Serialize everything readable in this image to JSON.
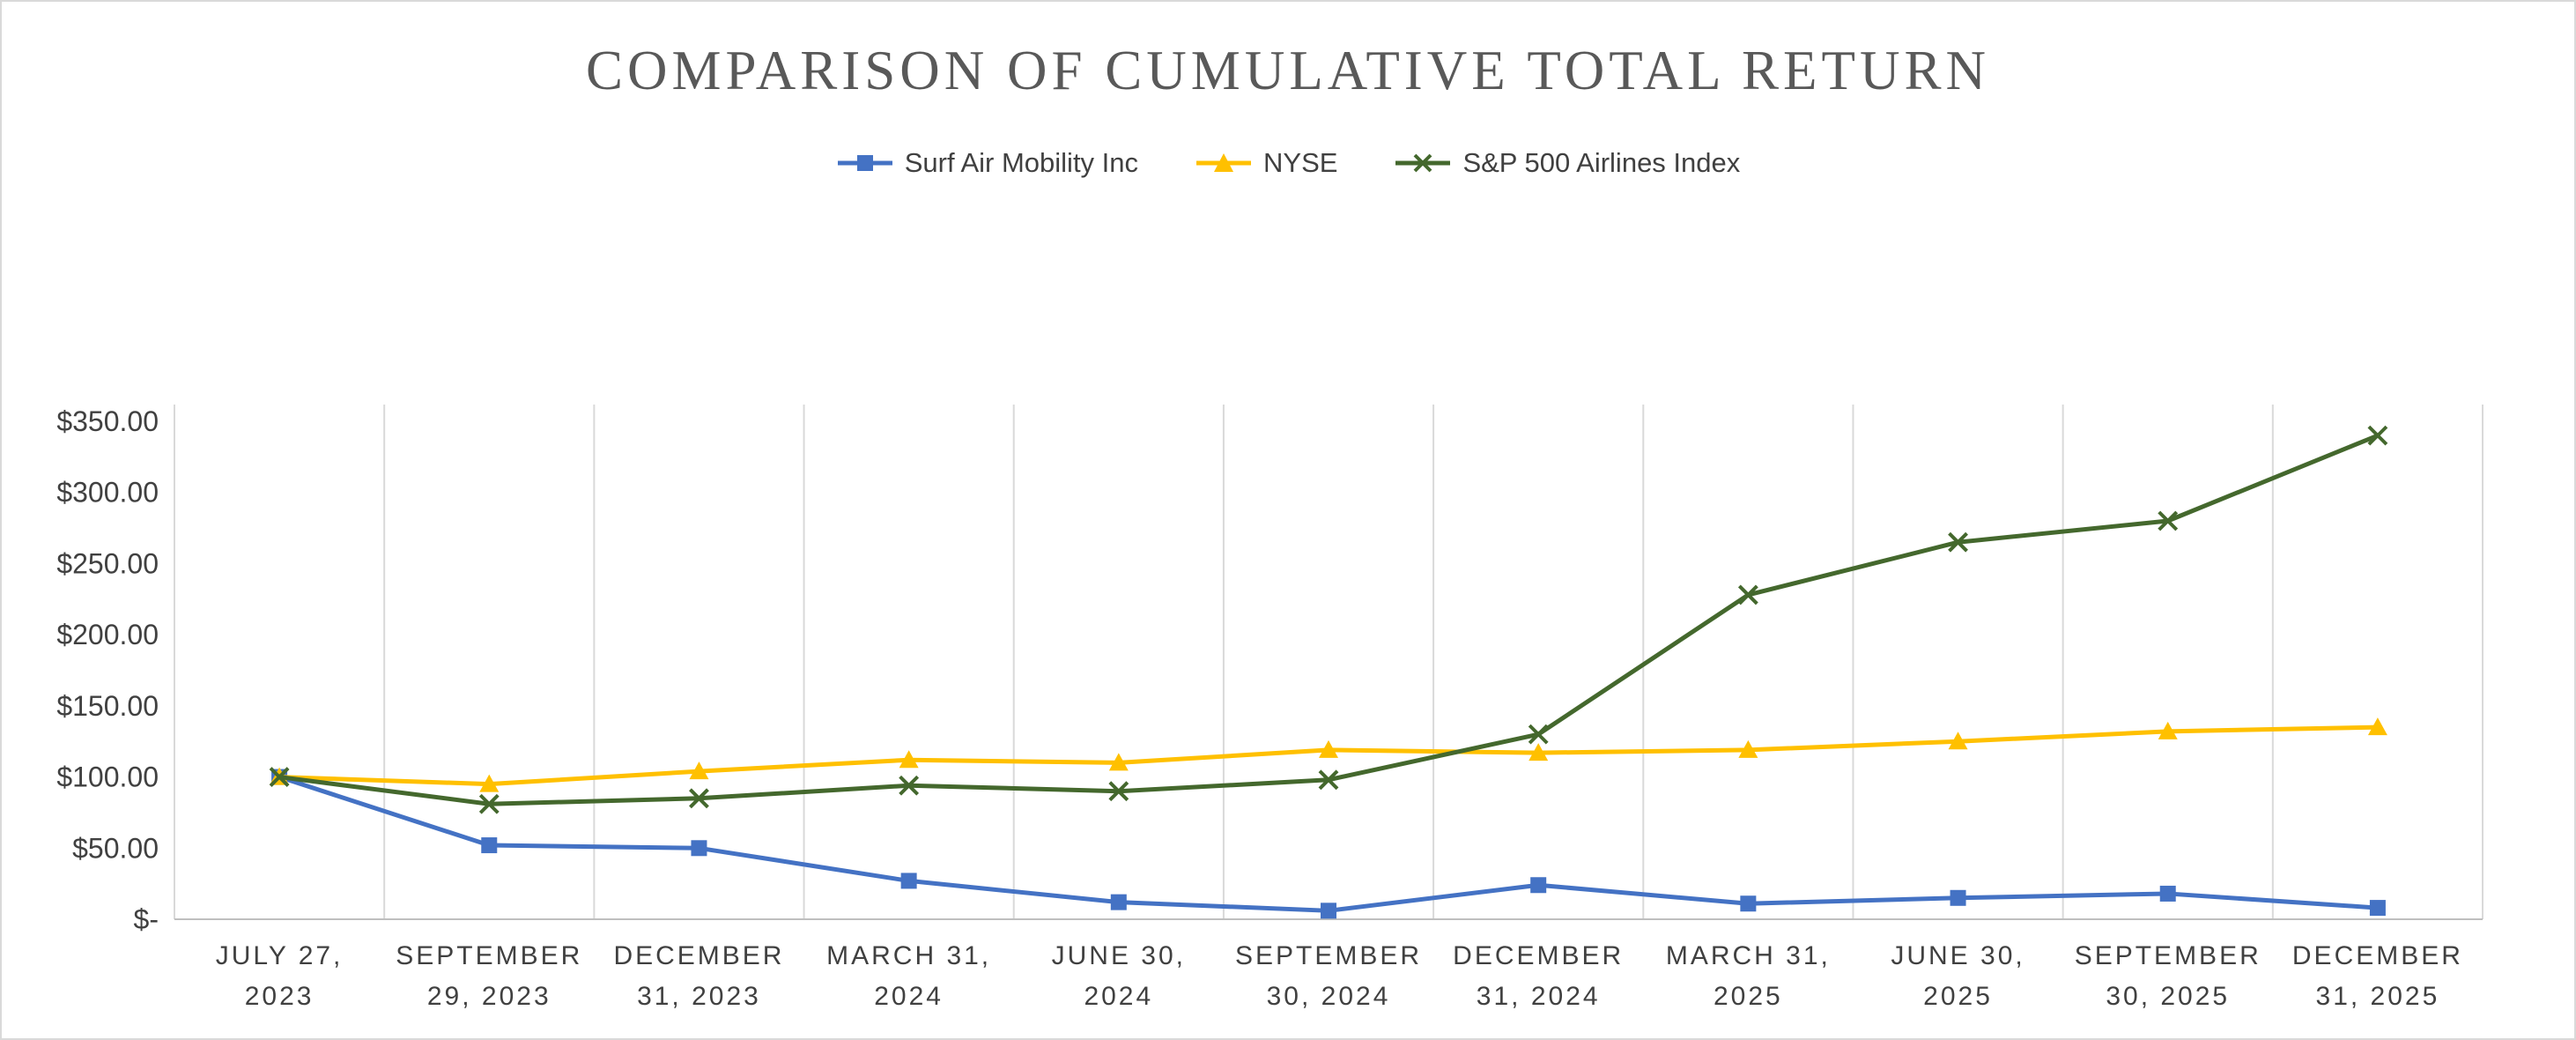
{
  "page": {
    "background": "#ffffff",
    "border_color": "#d9d9d9"
  },
  "chart_data": {
    "type": "line",
    "title": "COMPARISON OF CUMULATIVE TOTAL RETURN",
    "legend_position": "top",
    "grid": "vertical",
    "xlabel": "",
    "ylabel": "",
    "ylim": [
      0,
      350
    ],
    "y_tick_values": [
      0,
      50,
      100,
      150,
      200,
      250,
      300,
      350
    ],
    "y_tick_labels": [
      "$-",
      "$50.00",
      "$100.00",
      "$150.00",
      "$200.00",
      "$250.00",
      "$300.00",
      "$350.00"
    ],
    "categories": [
      "JULY 27, 2023",
      "SEPTEMBER 29, 2023",
      "DECEMBER 31, 2023",
      "MARCH 31, 2024",
      "JUNE 30, 2024",
      "SEPTEMBER 30, 2024",
      "DECEMBER 31, 2024",
      "MARCH 31, 2025",
      "JUNE 30, 2025",
      "SEPTEMBER 30, 2025",
      "DECEMBER 31, 2025"
    ],
    "category_label_lines": [
      [
        "JULY 27,",
        "2023"
      ],
      [
        "SEPTEMBER",
        "29, 2023"
      ],
      [
        "DECEMBER",
        "31, 2023"
      ],
      [
        "MARCH 31,",
        "2024"
      ],
      [
        "JUNE 30,",
        "2024"
      ],
      [
        "SEPTEMBER",
        "30, 2024"
      ],
      [
        "DECEMBER",
        "31, 2024"
      ],
      [
        "MARCH 31,",
        "2025"
      ],
      [
        "JUNE 30,",
        "2025"
      ],
      [
        "SEPTEMBER",
        "30, 2025"
      ],
      [
        "DECEMBER",
        "31, 2025"
      ]
    ],
    "series": [
      {
        "name": "Surf Air Mobility Inc",
        "color": "#4472C4",
        "marker": "square",
        "values": [
          100,
          52,
          50,
          27,
          12,
          6,
          24,
          11,
          15,
          18,
          8
        ]
      },
      {
        "name": "NYSE",
        "color": "#FFC000",
        "marker": "triangle",
        "values": [
          100,
          95,
          104,
          112,
          110,
          119,
          117,
          119,
          125,
          132,
          135
        ]
      },
      {
        "name": "S&P 500 Airlines Index",
        "color": "#44682D",
        "marker": "x",
        "values": [
          100,
          81,
          85,
          94,
          90,
          98,
          130,
          228,
          265,
          280,
          340
        ]
      }
    ],
    "colors": {
      "title": "#595959",
      "axis_text": "#404040",
      "gridline": "#D9D9D9",
      "axis_line": "#BFBFBF"
    }
  }
}
